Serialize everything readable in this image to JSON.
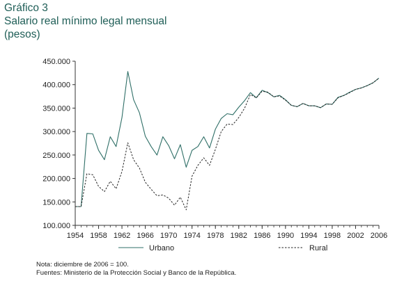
{
  "header": {
    "label": "Gráfico 3",
    "title": "Salario real mínimo legal mensual",
    "subtitle": "(pesos)"
  },
  "notes": {
    "nota": "Nota: diciembre de 2006 = 100.",
    "fuentes": "Fuentes: Ministerio de la Protección Social y Banco de la República."
  },
  "colors": {
    "urbano": "#2f6f67",
    "rural": "#222222",
    "axis": "#333333",
    "title": "#1f5e57"
  },
  "chart_data": {
    "type": "line",
    "xlim": [
      1954,
      2006
    ],
    "ylim": [
      100000,
      450000
    ],
    "x_ticks": [
      {
        "value": 1954,
        "label": "1954"
      },
      {
        "value": 1958,
        "label": "1958"
      },
      {
        "value": 1962,
        "label": "1962"
      },
      {
        "value": 1966,
        "label": "1966"
      },
      {
        "value": 1970,
        "label": "1970"
      },
      {
        "value": 1974,
        "label": "1974"
      },
      {
        "value": 1978,
        "label": "1978"
      },
      {
        "value": 1982,
        "label": "1982"
      },
      {
        "value": 1986,
        "label": "1986"
      },
      {
        "value": 1990,
        "label": "1990"
      },
      {
        "value": 1994,
        "label": "1994"
      },
      {
        "value": 1998,
        "label": "1998"
      },
      {
        "value": 2002,
        "label": "2002"
      },
      {
        "value": 2006,
        "label": "2006"
      }
    ],
    "y_ticks": [
      {
        "value": 100000,
        "label": "100.000"
      },
      {
        "value": 150000,
        "label": "150.000"
      },
      {
        "value": 200000,
        "label": "200.000"
      },
      {
        "value": 250000,
        "label": "250.000"
      },
      {
        "value": 300000,
        "label": "300.000"
      },
      {
        "value": 350000,
        "label": "350.000"
      },
      {
        "value": 400000,
        "label": "400.000"
      },
      {
        "value": 450000,
        "label": "450.000"
      }
    ],
    "legend_position": "bottom",
    "grid": false,
    "series": [
      {
        "name": "Urbano",
        "style": "solid",
        "points": [
          [
            1954,
            140000
          ],
          [
            1955,
            140000
          ],
          [
            1956,
            296000
          ],
          [
            1957,
            295000
          ],
          [
            1958,
            260000
          ],
          [
            1959,
            240000
          ],
          [
            1960,
            289000
          ],
          [
            1961,
            268000
          ],
          [
            1962,
            330000
          ],
          [
            1963,
            428000
          ],
          [
            1964,
            368000
          ],
          [
            1965,
            340000
          ],
          [
            1966,
            290000
          ],
          [
            1967,
            268000
          ],
          [
            1968,
            250000
          ],
          [
            1969,
            289000
          ],
          [
            1970,
            270000
          ],
          [
            1971,
            242000
          ],
          [
            1972,
            272000
          ],
          [
            1973,
            224000
          ],
          [
            1974,
            260000
          ],
          [
            1975,
            268000
          ],
          [
            1976,
            289000
          ],
          [
            1977,
            265000
          ],
          [
            1978,
            305000
          ],
          [
            1979,
            328000
          ],
          [
            1980,
            338000
          ],
          [
            1981,
            336000
          ],
          [
            1982,
            352000
          ],
          [
            1983,
            366000
          ],
          [
            1984,
            383000
          ],
          [
            1985,
            372000
          ],
          [
            1986,
            388000
          ],
          [
            1987,
            383000
          ],
          [
            1988,
            374000
          ],
          [
            1989,
            377000
          ],
          [
            1990,
            368000
          ],
          [
            1991,
            356000
          ],
          [
            1992,
            353000
          ],
          [
            1993,
            360000
          ],
          [
            1994,
            355000
          ],
          [
            1995,
            355000
          ],
          [
            1996,
            351000
          ],
          [
            1997,
            359000
          ],
          [
            1998,
            358000
          ],
          [
            1999,
            373000
          ],
          [
            2000,
            377000
          ],
          [
            2001,
            384000
          ],
          [
            2002,
            390000
          ],
          [
            2003,
            393000
          ],
          [
            2004,
            398000
          ],
          [
            2005,
            404000
          ],
          [
            2006,
            414000
          ]
        ]
      },
      {
        "name": "Rural",
        "style": "dashed",
        "points": [
          [
            1954,
            140000
          ],
          [
            1955,
            140000
          ],
          [
            1956,
            210000
          ],
          [
            1957,
            208000
          ],
          [
            1958,
            183000
          ],
          [
            1959,
            172000
          ],
          [
            1960,
            194000
          ],
          [
            1961,
            178000
          ],
          [
            1962,
            215000
          ],
          [
            1963,
            276000
          ],
          [
            1964,
            240000
          ],
          [
            1965,
            222000
          ],
          [
            1966,
            192000
          ],
          [
            1967,
            177000
          ],
          [
            1968,
            163000
          ],
          [
            1969,
            165000
          ],
          [
            1970,
            158000
          ],
          [
            1971,
            143000
          ],
          [
            1972,
            160000
          ],
          [
            1973,
            133000
          ],
          [
            1974,
            205000
          ],
          [
            1975,
            228000
          ],
          [
            1976,
            244000
          ],
          [
            1977,
            228000
          ],
          [
            1978,
            262000
          ],
          [
            1979,
            300000
          ],
          [
            1980,
            316000
          ],
          [
            1981,
            315000
          ],
          [
            1982,
            330000
          ],
          [
            1983,
            350000
          ],
          [
            1984,
            379000
          ],
          [
            1985,
            372000
          ],
          [
            1986,
            386000
          ],
          [
            1987,
            384000
          ],
          [
            1988,
            374000
          ],
          [
            1989,
            376000
          ],
          [
            1990,
            367000
          ],
          [
            1991,
            356000
          ],
          [
            1992,
            353000
          ],
          [
            1993,
            360000
          ],
          [
            1994,
            355000
          ],
          [
            1995,
            355000
          ],
          [
            1996,
            351000
          ],
          [
            1997,
            359000
          ],
          [
            1998,
            358000
          ],
          [
            1999,
            372000
          ],
          [
            2000,
            377000
          ],
          [
            2001,
            383000
          ],
          [
            2002,
            390000
          ],
          [
            2003,
            393000
          ],
          [
            2004,
            398000
          ],
          [
            2005,
            404000
          ],
          [
            2006,
            414000
          ]
        ]
      }
    ]
  }
}
